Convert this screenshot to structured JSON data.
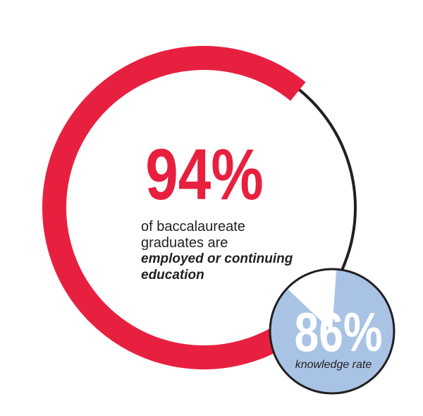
{
  "colors": {
    "accent": "#e8203f",
    "ring_track": "#231f20",
    "badge_fill": "#a9c3e5",
    "badge_light": "#ffffff",
    "badge_outline": "#231f20",
    "text": "#231f20"
  },
  "chart_data": [
    {
      "type": "pie",
      "variant": "donut",
      "values": [
        94,
        6
      ],
      "big_number": "94%",
      "caption_lines": [
        "of baccalaureate",
        "graduates are"
      ],
      "caption_emphasis_lines": [
        "employed or continuing",
        "education"
      ]
    },
    {
      "type": "pie",
      "values": [
        86,
        14
      ],
      "big_number": "86%",
      "caption": "knowledge rate"
    }
  ]
}
